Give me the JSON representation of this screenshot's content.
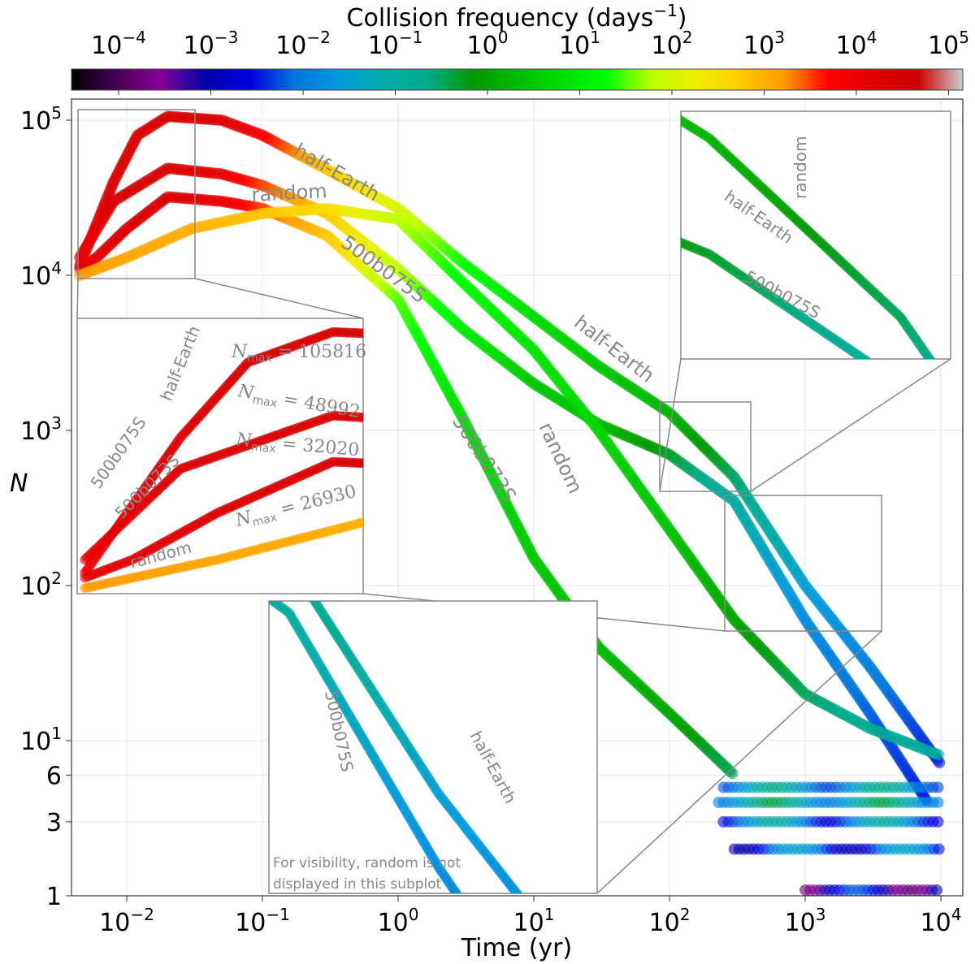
{
  "chart_data": {
    "type": "scatter",
    "xlabel": "Time (yr)",
    "ylabel": "N",
    "xscale": "log",
    "yscale": "log",
    "xlim": [
      0.0038,
      14500
    ],
    "ylim": [
      1,
      135000
    ],
    "grid": true,
    "x_ticks": [
      {
        "base": "10",
        "exp": "−2"
      },
      {
        "base": "10",
        "exp": "−1"
      },
      {
        "base": "10",
        "exp": "0"
      },
      {
        "base": "10",
        "exp": "1"
      },
      {
        "base": "10",
        "exp": "2"
      },
      {
        "base": "10",
        "exp": "3"
      },
      {
        "base": "10",
        "exp": "4"
      }
    ],
    "y_ticks": [
      {
        "base": "10",
        "exp": "5"
      },
      {
        "base": "10",
        "exp": "4"
      },
      {
        "base": "10",
        "exp": "3"
      },
      {
        "base": "10",
        "exp": "2"
      },
      {
        "base": "10",
        "exp": "1"
      },
      {
        "base": "6",
        "exp": ""
      },
      {
        "base": "3",
        "exp": ""
      },
      {
        "base": "1",
        "exp": ""
      }
    ],
    "colorbar": {
      "label": "Collision frequency (days",
      "label_exp": "−1",
      "label_close": ")",
      "colormap": "nipy_spectral",
      "scale": "log",
      "range": [
        3e-05,
        140000
      ],
      "ticks": [
        {
          "base": "10",
          "exp": "−4"
        },
        {
          "base": "10",
          "exp": "−3"
        },
        {
          "base": "10",
          "exp": "−2"
        },
        {
          "base": "10",
          "exp": "−1"
        },
        {
          "base": "10",
          "exp": "0"
        },
        {
          "base": "10",
          "exp": "1"
        },
        {
          "base": "10",
          "exp": "2"
        },
        {
          "base": "10",
          "exp": "3"
        },
        {
          "base": "10",
          "exp": "4"
        },
        {
          "base": "10",
          "exp": "5"
        }
      ]
    },
    "series_columns": [
      "time_yr",
      "N",
      "log10_collision_frequency_per_day"
    ],
    "series": [
      {
        "name": "half-Earth",
        "Nmax": "105816",
        "points": [
          [
            0.0045,
            11500,
            3.8
          ],
          [
            0.008,
            40000,
            4.2
          ],
          [
            0.012,
            80000,
            4.3
          ],
          [
            0.02,
            105816,
            4.3
          ],
          [
            0.05,
            100000,
            4.2
          ],
          [
            0.1,
            80000,
            3.8
          ],
          [
            0.3,
            48000,
            2.8
          ],
          [
            1,
            27000,
            2.0
          ],
          [
            3,
            12000,
            1.3
          ],
          [
            10,
            5400,
            0.8
          ],
          [
            30,
            2600,
            0.5
          ],
          [
            100,
            1300,
            0.2
          ],
          [
            300,
            500,
            -0.5
          ],
          [
            1000,
            100,
            -1.5
          ],
          [
            3000,
            30,
            -2.0
          ],
          [
            10000,
            7,
            -2.5
          ]
        ]
      },
      {
        "name": "500b075S",
        "Nmax": "48992",
        "points": [
          [
            0.0045,
            13000,
            4.0
          ],
          [
            0.008,
            30000,
            4.2
          ],
          [
            0.02,
            48992,
            4.3
          ],
          [
            0.05,
            45000,
            4.0
          ],
          [
            0.1,
            38000,
            3.5
          ],
          [
            0.3,
            25000,
            2.8
          ],
          [
            1,
            11000,
            1.8
          ],
          [
            3,
            4500,
            1.0
          ],
          [
            10,
            2000,
            0.5
          ],
          [
            30,
            1100,
            0.3
          ],
          [
            100,
            700,
            -0.3
          ],
          [
            300,
            350,
            -1.0
          ],
          [
            1000,
            60,
            -1.8
          ],
          [
            3000,
            15,
            -2.2
          ],
          [
            8000,
            4,
            -2.5
          ]
        ]
      },
      {
        "name": "500b073S",
        "Nmax": "32020",
        "points": [
          [
            0.0045,
            11000,
            4.0
          ],
          [
            0.006,
            13000,
            4.1
          ],
          [
            0.01,
            20000,
            4.2
          ],
          [
            0.02,
            32020,
            4.3
          ],
          [
            0.05,
            30000,
            4.0
          ],
          [
            0.1,
            27000,
            3.5
          ],
          [
            0.3,
            18000,
            2.8
          ],
          [
            1,
            7000,
            1.5
          ],
          [
            3,
            1200,
            0.8
          ],
          [
            10,
            150,
            0.5
          ],
          [
            30,
            40,
            0.3
          ],
          [
            100,
            15,
            0.0
          ],
          [
            300,
            6,
            -0.5
          ]
        ]
      },
      {
        "name": "random",
        "Nmax": "26930",
        "points": [
          [
            0.0045,
            10000,
            3.2
          ],
          [
            0.01,
            13000,
            3.1
          ],
          [
            0.03,
            20000,
            3.0
          ],
          [
            0.1,
            25000,
            2.8
          ],
          [
            0.3,
            26930,
            2.5
          ],
          [
            1,
            23000,
            1.8
          ],
          [
            3,
            9000,
            1.2
          ],
          [
            10,
            3300,
            0.9
          ],
          [
            30,
            1000,
            0.7
          ],
          [
            100,
            230,
            0.4
          ],
          [
            300,
            60,
            0.0
          ],
          [
            1000,
            20,
            -0.5
          ],
          [
            3000,
            12,
            -0.8
          ],
          [
            10000,
            8,
            -1.0
          ]
        ]
      }
    ],
    "low_N_bands": [
      {
        "N": 5,
        "t": [
          250,
          10000
        ],
        "logf": -1.5
      },
      {
        "N": 4,
        "t": [
          230,
          10000
        ],
        "logf": -1.2
      },
      {
        "N": 3,
        "t": [
          250,
          10000
        ],
        "logf": -1.8
      },
      {
        "N": 2,
        "t": [
          300,
          10000
        ],
        "logf": -2.2
      },
      {
        "N": 1,
        "t": [
          1000,
          10000
        ],
        "logf": -3.0
      }
    ],
    "annotations": {
      "half_earth": "half-Earth",
      "random": "random",
      "b075": "500b075S",
      "b073": "500b073S",
      "nmax_symbol": "N",
      "nmax_sub": "max",
      "nmax_eq": " = ",
      "inset_note_line1": "For visibility, random is not",
      "inset_note_line2": "displayed in this subplot"
    }
  }
}
